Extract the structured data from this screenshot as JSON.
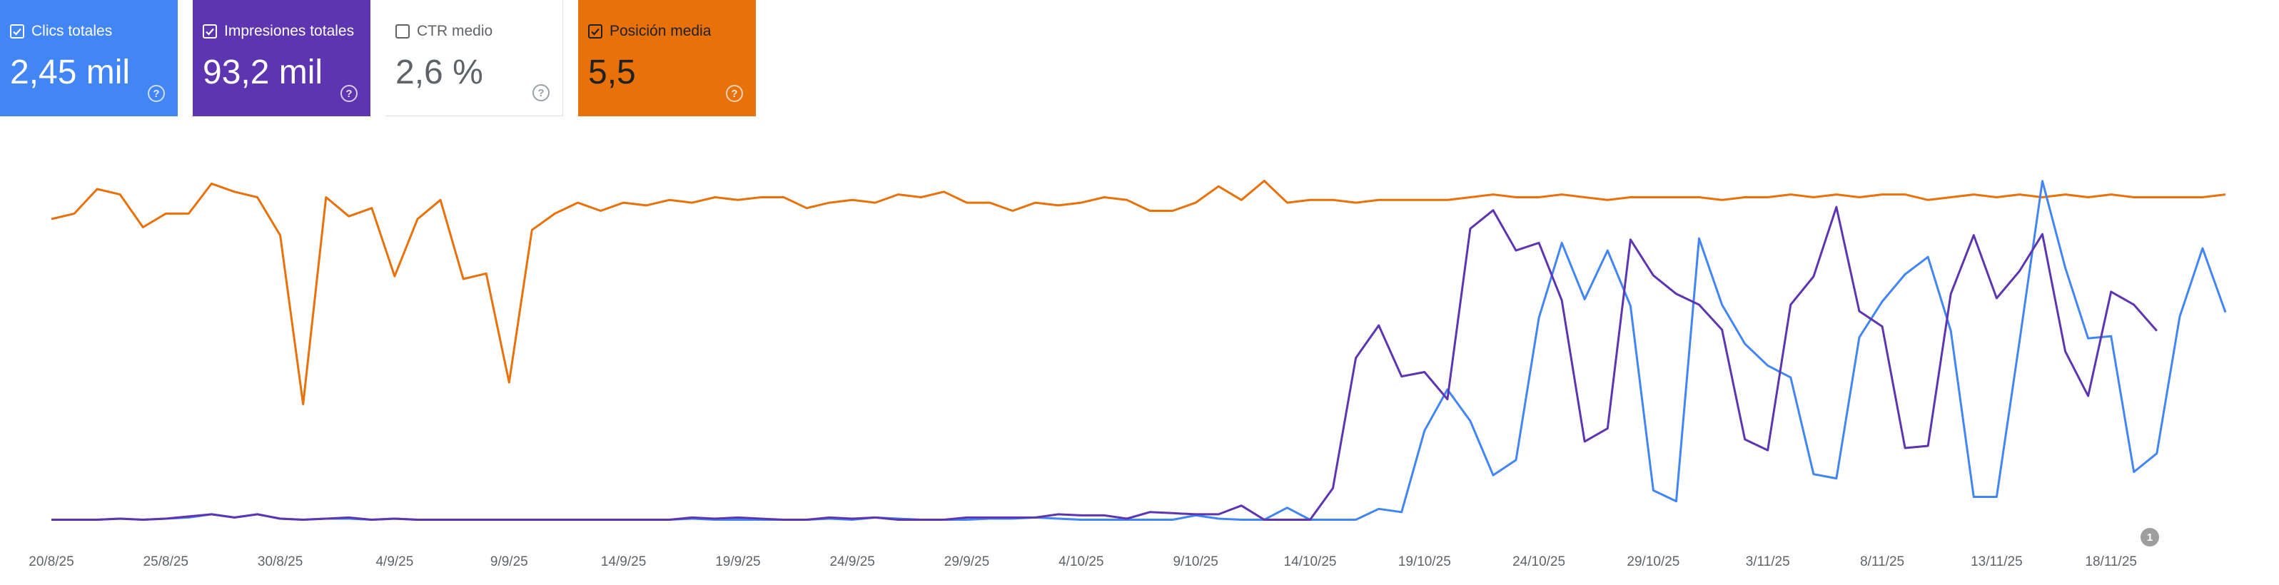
{
  "metrics": [
    {
      "key": "clicks",
      "label": "Clics totales",
      "value": "2,45 mil",
      "checked": true,
      "color": "#4285f4"
    },
    {
      "key": "impr",
      "label": "Impresiones totales",
      "value": "93,2 mil",
      "checked": true,
      "color": "#5e35b1"
    },
    {
      "key": "ctr",
      "label": "CTR medio",
      "value": "2,6 %",
      "checked": false,
      "color": "#ffffff"
    },
    {
      "key": "pos",
      "label": "Posición media",
      "value": "5,5",
      "checked": true,
      "color": "#e8710a"
    }
  ],
  "annotation": {
    "label": "1"
  },
  "chart_data": {
    "type": "line",
    "x_tick_labels": [
      "20/8/25",
      "25/8/25",
      "30/8/25",
      "4/9/25",
      "9/9/25",
      "14/9/25",
      "19/9/25",
      "24/9/25",
      "29/9/25",
      "4/10/25",
      "9/10/25",
      "14/10/25",
      "19/10/25",
      "24/10/25",
      "29/10/25",
      "3/11/25",
      "8/11/25",
      "13/11/25",
      "18/11/25"
    ],
    "grid": false,
    "series": [
      {
        "name": "Clics totales",
        "color": "#4285f4",
        "values": [
          0.1,
          0.1,
          0.1,
          0.2,
          0.1,
          0.2,
          0.3,
          0.6,
          0.3,
          0.6,
          0.2,
          0.1,
          0.2,
          0.2,
          0.1,
          0.2,
          0.1,
          0.1,
          0.1,
          0.1,
          0.1,
          0.1,
          0.1,
          0.1,
          0.1,
          0.1,
          0.1,
          0.1,
          0.2,
          0.1,
          0.1,
          0.1,
          0.1,
          0.1,
          0.2,
          0.1,
          0.3,
          0.2,
          0.1,
          0.1,
          0.1,
          0.2,
          0.2,
          0.3,
          0.2,
          0.1,
          0.1,
          0.1,
          0.1,
          0.1,
          0.5,
          0.2,
          0.1,
          0.1,
          1.2,
          0.1,
          0.1,
          0.1,
          1.1,
          0.8,
          8.3,
          12.1,
          9.2,
          4.2,
          5.6,
          18.7,
          25.6,
          20.4,
          24.9,
          19.8,
          2.8,
          1.8,
          26.0,
          19.9,
          16.3,
          14.3,
          13.2,
          4.3,
          3.9,
          16.9,
          20.2,
          22.7,
          24.3,
          17.5,
          2.2,
          2.2,
          16.5,
          31.3,
          23.3,
          16.8,
          17.0,
          4.5,
          6.2,
          18.8,
          25.1,
          19.2
        ]
      },
      {
        "name": "Impresiones totales",
        "color": "#5e35b1",
        "values": [
          0.1,
          0.1,
          0.1,
          0.2,
          0.1,
          0.2,
          0.4,
          0.6,
          0.3,
          0.6,
          0.2,
          0.1,
          0.2,
          0.3,
          0.1,
          0.2,
          0.1,
          0.1,
          0.1,
          0.1,
          0.1,
          0.1,
          0.1,
          0.1,
          0.1,
          0.1,
          0.1,
          0.1,
          0.3,
          0.2,
          0.3,
          0.2,
          0.1,
          0.1,
          0.3,
          0.2,
          0.3,
          0.1,
          0.1,
          0.1,
          0.3,
          0.3,
          0.3,
          0.3,
          0.6,
          0.5,
          0.5,
          0.2,
          0.8,
          0.7,
          0.6,
          0.6,
          1.4,
          0.1,
          0.1,
          0.1,
          3.0,
          15.0,
          18.0,
          13.3,
          13.7,
          11.2,
          26.9,
          28.6,
          24.9,
          25.6,
          20.3,
          7.3,
          8.5,
          25.9,
          22.6,
          20.9,
          19.9,
          17.6,
          7.5,
          6.5,
          19.9,
          22.5,
          28.9,
          19.3,
          17.9,
          6.7,
          6.9,
          20.9,
          26.3,
          20.5,
          23.0,
          26.4,
          15.6,
          11.5,
          21.1,
          19.9,
          17.5
        ]
      },
      {
        "name": "Posición media",
        "color": "#e8710a",
        "values": [
          8.8,
          9.0,
          9.9,
          9.7,
          8.5,
          9.0,
          9.0,
          10.1,
          9.8,
          9.6,
          8.2,
          2.0,
          9.6,
          8.9,
          9.2,
          6.7,
          8.8,
          9.5,
          6.6,
          6.8,
          2.8,
          8.4,
          9.0,
          9.4,
          9.1,
          9.4,
          9.3,
          9.5,
          9.4,
          9.6,
          9.5,
          9.6,
          9.6,
          9.2,
          9.4,
          9.5,
          9.4,
          9.7,
          9.6,
          9.8,
          9.4,
          9.4,
          9.1,
          9.4,
          9.3,
          9.4,
          9.6,
          9.5,
          9.1,
          9.1,
          9.4,
          10.0,
          9.5,
          10.2,
          9.4,
          9.5,
          9.5,
          9.4,
          9.5,
          9.5,
          9.5,
          9.5,
          9.6,
          9.7,
          9.6,
          9.6,
          9.7,
          9.6,
          9.5,
          9.6,
          9.6,
          9.6,
          9.6,
          9.5,
          9.6,
          9.6,
          9.7,
          9.6,
          9.7,
          9.6,
          9.7,
          9.7,
          9.5,
          9.6,
          9.7,
          9.6,
          9.7,
          9.6,
          9.7,
          9.6,
          9.7,
          9.6,
          9.6,
          9.6,
          9.6,
          9.7
        ]
      }
    ]
  }
}
